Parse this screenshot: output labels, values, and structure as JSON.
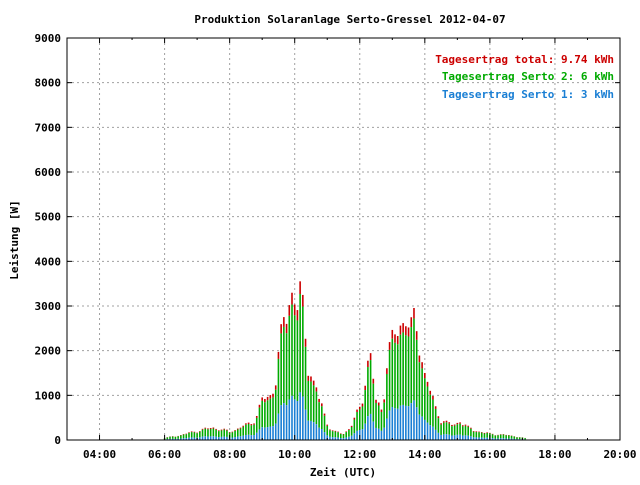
{
  "chart_data": {
    "type": "bar",
    "title": "Produktion Solaranlage Serto-Gressel 2012-04-07",
    "xlabel": "Zeit (UTC)",
    "ylabel": "Leistung [W]",
    "xlim": [
      3.0,
      20.0
    ],
    "ylim": [
      0,
      9000
    ],
    "xticks": [
      "04:00",
      "06:00",
      "08:00",
      "10:00",
      "12:00",
      "14:00",
      "16:00",
      "18:00",
      "20:00"
    ],
    "xtick_values": [
      4,
      6,
      8,
      10,
      12,
      14,
      16,
      18,
      20
    ],
    "yticks": [
      0,
      1000,
      2000,
      3000,
      4000,
      5000,
      6000,
      7000,
      8000,
      9000
    ],
    "grid": true,
    "legend_position": "top-right",
    "legend": [
      {
        "text": "Tagesertrag total: 9.74 kWh",
        "color": "#cc0000"
      },
      {
        "text": "Tagesertrag Serto 2: 6 kWh",
        "color": "#00aa00"
      },
      {
        "text": "Tagesertrag Serto 1: 3 kWh",
        "color": "#1a7fd4"
      }
    ],
    "series": [
      {
        "name": "Serto 1",
        "color": "#1a7fd4",
        "stack_order": 1
      },
      {
        "name": "Serto 2",
        "color": "#00aa00",
        "stack_order": 2
      },
      {
        "name": "total",
        "color": "#cc0000",
        "stack_order": 3
      }
    ],
    "anchors_hours": [
      6.0,
      6.5,
      7.0,
      7.5,
      8.0,
      8.5,
      8.8,
      9.0,
      9.2,
      9.4,
      9.55,
      9.65,
      9.75,
      9.9,
      10.05,
      10.2,
      10.4,
      10.6,
      10.8,
      11.0,
      11.2,
      11.5,
      11.7,
      11.9,
      12.05,
      12.15,
      12.3,
      12.5,
      12.7,
      12.85,
      13.0,
      13.15,
      13.3,
      13.45,
      13.55,
      13.7,
      13.85,
      14.0,
      14.15,
      14.3,
      14.5,
      14.7,
      14.9,
      15.1,
      15.3,
      15.6,
      16.0,
      16.4,
      16.8,
      17.1
    ],
    "anchors_total_watts": [
      50,
      120,
      220,
      300,
      200,
      350,
      500,
      950,
      1000,
      1400,
      2200,
      2700,
      3100,
      3700,
      3200,
      3400,
      2000,
      1300,
      900,
      400,
      200,
      150,
      300,
      600,
      800,
      1400,
      2200,
      900,
      700,
      2100,
      2300,
      2500,
      2900,
      3100,
      2500,
      2800,
      2300,
      1600,
      1200,
      800,
      500,
      400,
      350,
      480,
      300,
      220,
      150,
      130,
      90,
      40
    ]
  }
}
